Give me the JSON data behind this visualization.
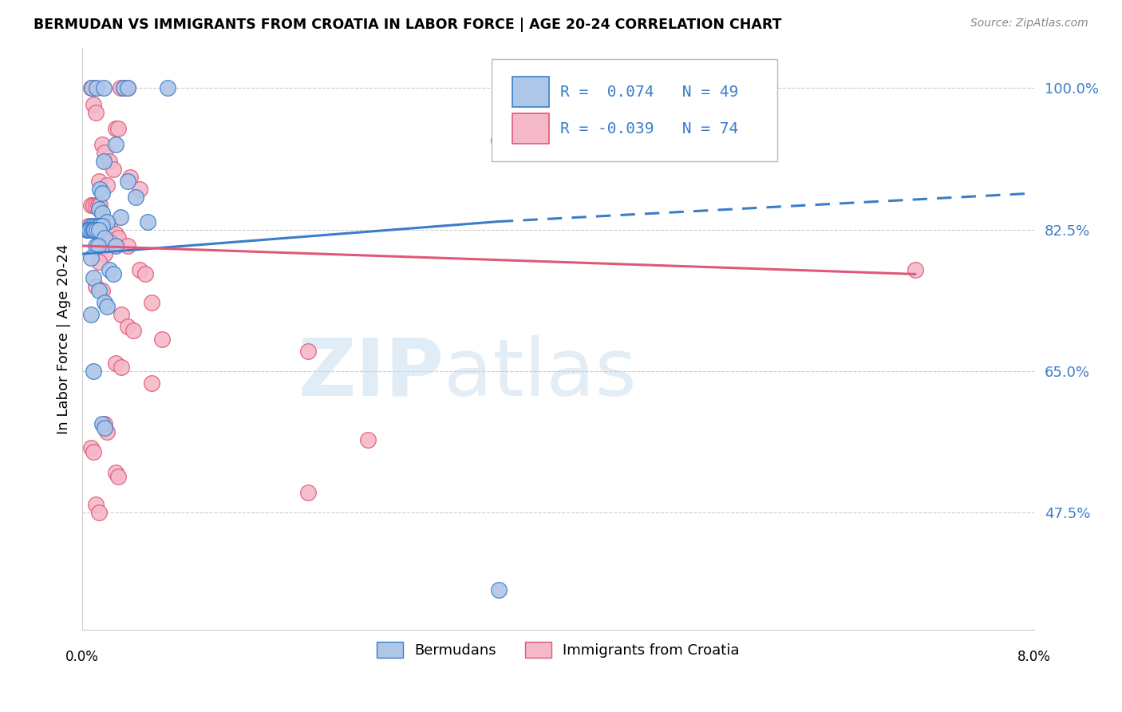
{
  "title": "BERMUDAN VS IMMIGRANTS FROM CROATIA IN LABOR FORCE | AGE 20-24 CORRELATION CHART",
  "source": "Source: ZipAtlas.com",
  "ylabel": "In Labor Force | Age 20-24",
  "yticks": [
    47.5,
    65.0,
    82.5,
    100.0
  ],
  "xlim": [
    0.0,
    8.0
  ],
  "ylim": [
    33.0,
    105.0
  ],
  "legend_blue_r": "0.074",
  "legend_blue_n": "49",
  "legend_pink_r": "-0.039",
  "legend_pink_n": "74",
  "legend_label_blue": "Bermudans",
  "legend_label_pink": "Immigrants from Croatia",
  "color_blue": "#aec6e8",
  "color_pink": "#f5b8c8",
  "trend_color_blue": "#3a7dc9",
  "trend_color_pink": "#e05878",
  "watermark_zip": "ZIP",
  "watermark_atlas": "atlas",
  "blue_scatter": [
    [
      0.08,
      100.0
    ],
    [
      0.12,
      100.0
    ],
    [
      0.18,
      100.0
    ],
    [
      0.35,
      100.0
    ],
    [
      0.38,
      100.0
    ],
    [
      0.72,
      100.0
    ],
    [
      0.28,
      93.0
    ],
    [
      0.18,
      91.0
    ],
    [
      0.38,
      88.5
    ],
    [
      0.15,
      87.5
    ],
    [
      0.17,
      87.0
    ],
    [
      0.45,
      86.5
    ],
    [
      0.14,
      85.0
    ],
    [
      0.17,
      84.5
    ],
    [
      0.32,
      84.0
    ],
    [
      0.21,
      83.5
    ],
    [
      0.55,
      83.5
    ],
    [
      0.07,
      83.0
    ],
    [
      0.09,
      83.0
    ],
    [
      0.11,
      83.0
    ],
    [
      0.13,
      83.0
    ],
    [
      0.15,
      83.0
    ],
    [
      0.17,
      83.0
    ],
    [
      0.04,
      82.5
    ],
    [
      0.05,
      82.5
    ],
    [
      0.06,
      82.5
    ],
    [
      0.08,
      82.5
    ],
    [
      0.09,
      82.5
    ],
    [
      0.1,
      82.5
    ],
    [
      0.12,
      82.5
    ],
    [
      0.14,
      82.5
    ],
    [
      0.19,
      81.5
    ],
    [
      0.11,
      80.5
    ],
    [
      0.13,
      80.5
    ],
    [
      0.28,
      80.5
    ],
    [
      0.07,
      79.0
    ],
    [
      0.23,
      77.5
    ],
    [
      0.26,
      77.0
    ],
    [
      0.09,
      76.5
    ],
    [
      0.14,
      75.0
    ],
    [
      0.19,
      73.5
    ],
    [
      0.21,
      73.0
    ],
    [
      0.07,
      72.0
    ],
    [
      0.09,
      65.0
    ],
    [
      0.17,
      58.5
    ],
    [
      0.19,
      58.0
    ],
    [
      3.5,
      93.5
    ],
    [
      3.5,
      38.0
    ]
  ],
  "pink_scatter": [
    [
      0.07,
      100.0
    ],
    [
      0.11,
      100.0
    ],
    [
      0.32,
      100.0
    ],
    [
      0.35,
      100.0
    ],
    [
      0.38,
      100.0
    ],
    [
      0.09,
      98.0
    ],
    [
      0.11,
      97.0
    ],
    [
      0.28,
      95.0
    ],
    [
      0.3,
      95.0
    ],
    [
      0.17,
      93.0
    ],
    [
      0.19,
      92.0
    ],
    [
      0.23,
      91.0
    ],
    [
      0.26,
      90.0
    ],
    [
      0.4,
      89.0
    ],
    [
      0.14,
      88.5
    ],
    [
      0.21,
      88.0
    ],
    [
      0.48,
      87.5
    ],
    [
      0.07,
      85.5
    ],
    [
      0.09,
      85.5
    ],
    [
      0.11,
      85.5
    ],
    [
      0.13,
      85.5
    ],
    [
      0.15,
      85.5
    ],
    [
      0.05,
      83.0
    ],
    [
      0.07,
      83.0
    ],
    [
      0.08,
      83.0
    ],
    [
      0.09,
      83.0
    ],
    [
      0.11,
      83.0
    ],
    [
      0.13,
      83.0
    ],
    [
      0.15,
      83.0
    ],
    [
      0.17,
      83.0
    ],
    [
      0.19,
      83.0
    ],
    [
      0.21,
      83.0
    ],
    [
      0.23,
      83.0
    ],
    [
      0.04,
      82.5
    ],
    [
      0.06,
      82.5
    ],
    [
      0.08,
      82.5
    ],
    [
      0.1,
      82.5
    ],
    [
      0.12,
      82.5
    ],
    [
      0.28,
      82.0
    ],
    [
      0.3,
      81.5
    ],
    [
      0.23,
      81.0
    ],
    [
      0.38,
      80.5
    ],
    [
      0.19,
      79.5
    ],
    [
      0.14,
      78.5
    ],
    [
      0.48,
      77.5
    ],
    [
      0.53,
      77.0
    ],
    [
      0.11,
      75.5
    ],
    [
      0.17,
      75.0
    ],
    [
      0.58,
      73.5
    ],
    [
      0.33,
      72.0
    ],
    [
      0.38,
      70.5
    ],
    [
      0.43,
      70.0
    ],
    [
      0.67,
      69.0
    ],
    [
      1.9,
      67.5
    ],
    [
      0.28,
      66.0
    ],
    [
      0.33,
      65.5
    ],
    [
      0.58,
      63.5
    ],
    [
      0.19,
      58.5
    ],
    [
      0.21,
      57.5
    ],
    [
      2.4,
      56.5
    ],
    [
      0.07,
      55.5
    ],
    [
      0.09,
      55.0
    ],
    [
      0.28,
      52.5
    ],
    [
      0.3,
      52.0
    ],
    [
      1.9,
      50.0
    ],
    [
      0.11,
      48.5
    ],
    [
      0.14,
      47.5
    ],
    [
      7.0,
      77.5
    ]
  ],
  "blue_trend_x": [
    0.0,
    3.5,
    8.0
  ],
  "blue_trend_y": [
    79.5,
    83.5,
    87.0
  ],
  "blue_solid_end": 3.5,
  "pink_trend_x": [
    0.0,
    7.0
  ],
  "pink_trend_y": [
    80.5,
    77.0
  ]
}
